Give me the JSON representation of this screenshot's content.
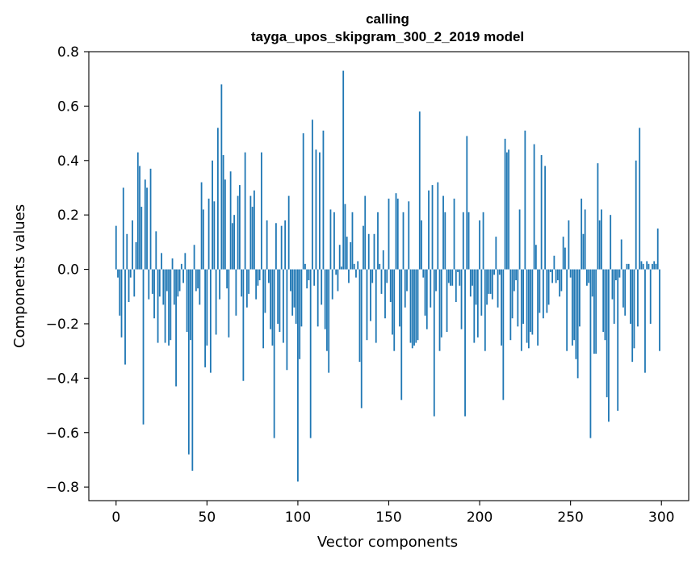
{
  "chart_data": {
    "type": "bar",
    "title": "calling",
    "subtitle": "tayga_upos_skipgram_300_2_2019 model",
    "xlabel": "Vector components",
    "ylabel": "Components values",
    "xlim": [
      -15,
      315
    ],
    "ylim": [
      -0.85,
      0.8
    ],
    "xticks": [
      0,
      50,
      100,
      150,
      200,
      250,
      300
    ],
    "xtick_labels": [
      "0",
      "50",
      "100",
      "150",
      "200",
      "250",
      "300"
    ],
    "yticks": [
      -0.8,
      -0.6,
      -0.4,
      -0.2,
      0.0,
      0.2,
      0.4,
      0.6,
      0.8
    ],
    "ytick_labels": [
      "−0.8",
      "−0.6",
      "−0.4",
      "−0.2",
      "0.0",
      "0.2",
      "0.4",
      "0.6",
      "0.8"
    ],
    "color": "#1f77b4",
    "x": "component index 0..299",
    "values": [
      0.16,
      -0.03,
      -0.17,
      -0.25,
      0.3,
      -0.35,
      0.13,
      -0.12,
      -0.03,
      0.18,
      -0.1,
      0.1,
      0.43,
      0.38,
      0.23,
      -0.57,
      0.33,
      0.3,
      -0.11,
      0.37,
      -0.09,
      -0.18,
      0.14,
      -0.27,
      -0.1,
      0.06,
      -0.13,
      -0.27,
      -0.08,
      -0.28,
      -0.26,
      0.04,
      -0.13,
      -0.43,
      -0.1,
      -0.08,
      0.02,
      -0.05,
      0.06,
      -0.23,
      -0.68,
      -0.26,
      -0.74,
      0.09,
      -0.08,
      -0.07,
      -0.13,
      0.32,
      0.22,
      -0.36,
      -0.28,
      0.26,
      -0.38,
      0.4,
      0.25,
      -0.24,
      0.52,
      -0.11,
      0.68,
      0.42,
      0.33,
      -0.07,
      -0.25,
      0.36,
      0.17,
      0.2,
      -0.17,
      0.27,
      0.31,
      -0.1,
      -0.41,
      0.43,
      -0.14,
      -0.09,
      0.27,
      0.23,
      0.29,
      -0.11,
      -0.06,
      -0.04,
      0.43,
      -0.29,
      -0.16,
      0.18,
      -0.05,
      -0.22,
      -0.28,
      -0.62,
      0.17,
      -0.2,
      -0.23,
      0.16,
      -0.27,
      0.18,
      -0.37,
      0.27,
      -0.08,
      -0.17,
      -0.14,
      -0.2,
      -0.78,
      -0.33,
      -0.21,
      0.5,
      0.02,
      -0.07,
      -0.04,
      -0.62,
      0.55,
      -0.06,
      0.44,
      -0.21,
      0.43,
      -0.13,
      0.51,
      -0.22,
      -0.3,
      -0.38,
      0.22,
      -0.11,
      0.21,
      -0.02,
      -0.08,
      0.09,
      0.01,
      0.73,
      0.24,
      0.12,
      -0.05,
      0.1,
      0.21,
      0.02,
      -0.03,
      0.03,
      -0.34,
      -0.51,
      0.16,
      0.27,
      -0.26,
      0.13,
      -0.19,
      -0.05,
      0.13,
      -0.27,
      0.21,
      0.02,
      -0.09,
      0.07,
      -0.18,
      -0.05,
      0.26,
      -0.12,
      -0.24,
      -0.3,
      0.28,
      0.26,
      -0.21,
      -0.48,
      0.21,
      -0.14,
      -0.08,
      0.25,
      -0.27,
      -0.29,
      -0.28,
      -0.27,
      -0.26,
      0.58,
      0.18,
      -0.03,
      -0.17,
      -0.22,
      0.29,
      -0.14,
      0.31,
      -0.54,
      -0.08,
      0.32,
      -0.3,
      -0.25,
      0.27,
      0.21,
      -0.23,
      -0.05,
      -0.06,
      -0.06,
      0.26,
      -0.12,
      -0.01,
      -0.06,
      -0.22,
      0.21,
      -0.54,
      0.49,
      0.21,
      -0.1,
      -0.06,
      -0.27,
      -0.13,
      -0.25,
      0.18,
      -0.17,
      0.21,
      -0.3,
      -0.13,
      -0.09,
      -0.09,
      -0.11,
      -0.02,
      0.12,
      -0.14,
      -0.02,
      -0.28,
      -0.48,
      0.48,
      0.43,
      0.44,
      -0.26,
      -0.18,
      -0.08,
      -0.04,
      -0.21,
      0.22,
      -0.3,
      -0.2,
      0.51,
      -0.27,
      -0.29,
      -0.23,
      -0.24,
      0.46,
      0.09,
      -0.28,
      -0.16,
      0.42,
      -0.18,
      0.38,
      -0.16,
      -0.13,
      -0.01,
      -0.05,
      0.05,
      -0.05,
      -0.04,
      -0.1,
      -0.08,
      0.12,
      0.08,
      -0.3,
      0.18,
      -0.03,
      -0.28,
      -0.26,
      -0.33,
      -0.4,
      -0.21,
      0.26,
      0.13,
      0.22,
      -0.06,
      -0.05,
      -0.62,
      -0.1,
      -0.31,
      -0.31,
      0.39,
      0.18,
      0.22,
      -0.23,
      -0.26,
      -0.47,
      -0.56,
      0.2,
      -0.11,
      -0.2,
      -0.04,
      -0.52,
      -0.03,
      0.11,
      -0.14,
      -0.17,
      0.02,
      0.02,
      -0.2,
      -0.34,
      -0.29,
      0.4,
      -0.21,
      0.52,
      0.03,
      0.02,
      -0.38,
      0.03,
      0.02,
      -0.2,
      0.02,
      0.03,
      0.02,
      0.15,
      -0.3
    ]
  }
}
